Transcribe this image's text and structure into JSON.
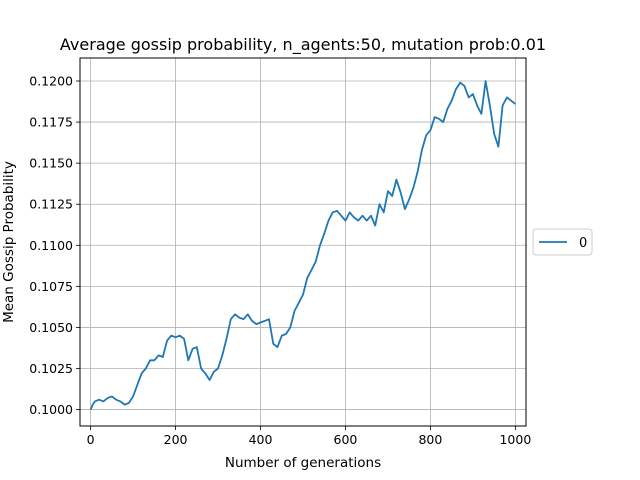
{
  "chart_data": {
    "type": "line",
    "title": "Average gossip probability, n_agents:50, mutation prob:0.01",
    "xlabel": "Number of generations",
    "ylabel": "Mean Gossip Probability",
    "xlim": [
      -25,
      1025
    ],
    "ylim": [
      0.099,
      0.1214
    ],
    "xticks": [
      0,
      200,
      400,
      600,
      800,
      1000
    ],
    "xtick_labels": [
      "0",
      "200",
      "400",
      "600",
      "800",
      "1000"
    ],
    "yticks": [
      0.1,
      0.1025,
      0.105,
      0.1075,
      0.11,
      0.1125,
      0.115,
      0.1175,
      0.12
    ],
    "ytick_labels": [
      "0.1000",
      "0.1025",
      "0.1050",
      "0.1075",
      "0.1100",
      "0.1125",
      "0.1150",
      "0.1175",
      "0.1200"
    ],
    "grid": true,
    "legend_position": "center-right-outside",
    "color": "#1f77b4",
    "series": [
      {
        "name": "0",
        "x": [
          0,
          5,
          10,
          20,
          30,
          40,
          50,
          60,
          70,
          80,
          90,
          100,
          110,
          120,
          130,
          140,
          150,
          160,
          170,
          180,
          190,
          200,
          210,
          220,
          230,
          240,
          250,
          260,
          270,
          280,
          290,
          300,
          310,
          320,
          330,
          340,
          350,
          360,
          370,
          380,
          390,
          400,
          410,
          420,
          430,
          440,
          450,
          460,
          470,
          480,
          490,
          500,
          510,
          520,
          530,
          540,
          550,
          560,
          570,
          580,
          590,
          600,
          610,
          620,
          630,
          640,
          650,
          660,
          670,
          680,
          690,
          700,
          710,
          720,
          730,
          740,
          750,
          760,
          770,
          780,
          790,
          800,
          810,
          820,
          830,
          840,
          850,
          860,
          870,
          880,
          890,
          900,
          910,
          920,
          930,
          940,
          950,
          960,
          970,
          980,
          990,
          1000
        ],
        "y": [
          0.1,
          0.1003,
          0.1005,
          0.1006,
          0.1005,
          0.1007,
          0.1008,
          0.1006,
          0.1005,
          0.1003,
          0.1004,
          0.1008,
          0.1015,
          0.1022,
          0.1025,
          0.103,
          0.103,
          0.1033,
          0.1032,
          0.1042,
          0.1045,
          0.1044,
          0.1045,
          0.1043,
          0.103,
          0.1037,
          0.1038,
          0.1025,
          0.1022,
          0.1018,
          0.1023,
          0.1025,
          0.1033,
          0.1043,
          0.1055,
          0.1058,
          0.1056,
          0.1055,
          0.1058,
          0.1054,
          0.1052,
          0.1053,
          0.1054,
          0.1055,
          0.104,
          0.1038,
          0.1045,
          0.1046,
          0.105,
          0.106,
          0.1065,
          0.107,
          0.108,
          0.1085,
          0.109,
          0.11,
          0.1107,
          0.1115,
          0.112,
          0.1121,
          0.1118,
          0.1115,
          0.112,
          0.1117,
          0.1115,
          0.1118,
          0.1115,
          0.1118,
          0.1112,
          0.1125,
          0.112,
          0.1133,
          0.113,
          0.114,
          0.1132,
          0.1122,
          0.1128,
          0.1135,
          0.1145,
          0.1158,
          0.1167,
          0.117,
          0.1178,
          0.1177,
          0.1175,
          0.1183,
          0.1188,
          0.1195,
          0.1199,
          0.1197,
          0.119,
          0.1192,
          0.1185,
          0.118,
          0.12,
          0.1185,
          0.1168,
          0.116,
          0.1185,
          0.119,
          0.1188,
          0.1186
        ]
      }
    ]
  }
}
